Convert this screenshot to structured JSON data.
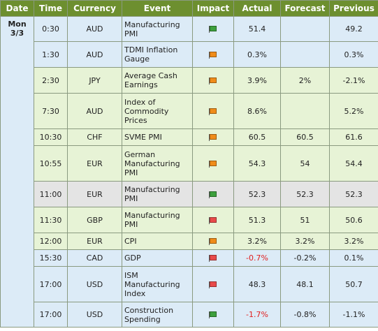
{
  "header": {
    "date": "Date",
    "time": "Time",
    "currency": "Currency",
    "event": "Event",
    "impact": "Impact",
    "actual": "Actual",
    "forecast": "Forecast",
    "previous": "Previous"
  },
  "date_cell": {
    "day": "Mon",
    "date": "3/3"
  },
  "colors": {
    "header_bg": "#6d8f2f",
    "row_blue": "#dcebf7",
    "row_green": "#e7f3d6",
    "row_gray": "#e4e4e4",
    "impact_low": "#3da03d",
    "impact_med": "#f08c1a",
    "impact_high": "#e84a4a",
    "negative_text": "#e02020"
  },
  "rows": [
    {
      "time": "0:30",
      "currency": "AUD",
      "event": "Manufacturing PMI",
      "impact": "low",
      "actual": "51.4",
      "forecast": "",
      "previous": "49.2",
      "actual_negative": false,
      "bg": "blue",
      "height": 36
    },
    {
      "time": "1:30",
      "currency": "AUD",
      "event": "TDMI Inflation Gauge",
      "impact": "medium",
      "actual": "0.3%",
      "forecast": "",
      "previous": "0.3%",
      "actual_negative": false,
      "bg": "blue",
      "height": 37
    },
    {
      "time": "2:30",
      "currency": "JPY",
      "event": "Average Cash Earnings",
      "impact": "medium",
      "actual": "3.9%",
      "forecast": "2%",
      "previous": "-2.1%",
      "actual_negative": false,
      "bg": "green",
      "height": 37
    },
    {
      "time": "7:30",
      "currency": "AUD",
      "event": "Index of Commodity Prices",
      "impact": "medium",
      "actual": "8.6%",
      "forecast": "",
      "previous": "5.2%",
      "actual_negative": false,
      "bg": "green",
      "height": 51
    },
    {
      "time": "10:30",
      "currency": "CHF",
      "event": "SVME PMI",
      "impact": "medium",
      "actual": "60.5",
      "forecast": "60.5",
      "previous": "61.6",
      "actual_negative": false,
      "bg": "green",
      "height": 24
    },
    {
      "time": "10:55",
      "currency": "EUR",
      "event": "German Manufacturing PMI",
      "impact": "medium",
      "actual": "54.3",
      "forecast": "54",
      "previous": "54.4",
      "actual_negative": false,
      "bg": "green",
      "height": 51
    },
    {
      "time": "11:00",
      "currency": "EUR",
      "event": "Manufacturing PMI",
      "impact": "low",
      "actual": "52.3",
      "forecast": "52.3",
      "previous": "52.3",
      "actual_negative": false,
      "bg": "gray",
      "height": 37
    },
    {
      "time": "11:30",
      "currency": "GBP",
      "event": "Manufacturing PMI",
      "impact": "high",
      "actual": "51.3",
      "forecast": "51",
      "previous": "50.6",
      "actual_negative": false,
      "bg": "green",
      "height": 37
    },
    {
      "time": "12:00",
      "currency": "EUR",
      "event": "CPI",
      "impact": "medium",
      "actual": "3.2%",
      "forecast": "3.2%",
      "previous": "3.2%",
      "actual_negative": false,
      "bg": "green",
      "height": 24
    },
    {
      "time": "15:30",
      "currency": "CAD",
      "event": "GDP",
      "impact": "high",
      "actual": "-0.7%",
      "forecast": "-0.2%",
      "previous": "0.1%",
      "actual_negative": true,
      "bg": "blue",
      "height": 24
    },
    {
      "time": "17:00",
      "currency": "USD",
      "event": "ISM Manufacturing Index",
      "impact": "high",
      "actual": "48.3",
      "forecast": "48.1",
      "previous": "50.7",
      "actual_negative": false,
      "bg": "blue",
      "height": 51
    },
    {
      "time": "17:00",
      "currency": "USD",
      "event": "Construction Spending",
      "impact": "low",
      "actual": "-1.7%",
      "forecast": "-0.8%",
      "previous": "-1.1%",
      "actual_negative": true,
      "bg": "blue",
      "height": 36
    }
  ]
}
